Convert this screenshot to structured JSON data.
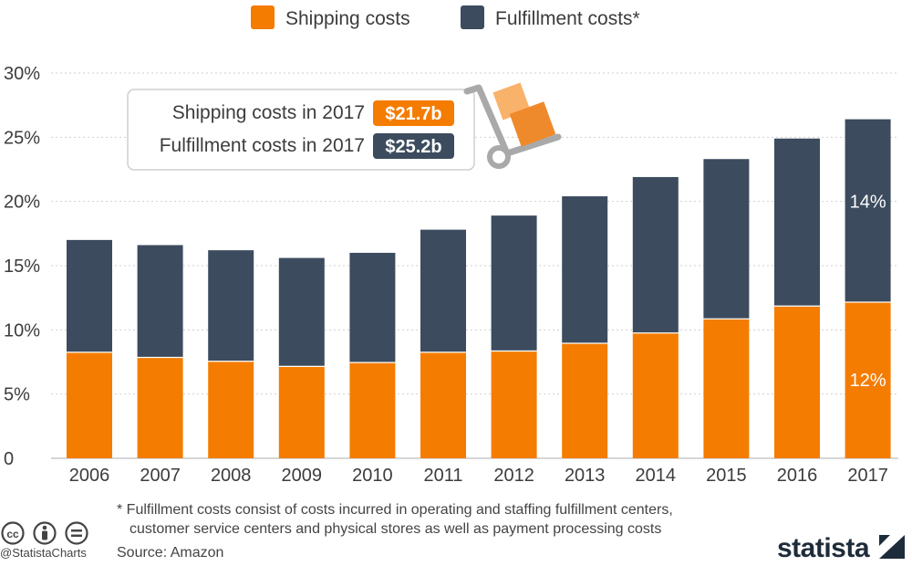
{
  "chart_data": {
    "type": "bar",
    "stacked": true,
    "categories": [
      "2006",
      "2007",
      "2008",
      "2009",
      "2010",
      "2011",
      "2012",
      "2013",
      "2014",
      "2015",
      "2016",
      "2017"
    ],
    "series": [
      {
        "name": "Shipping costs",
        "color": "#f47c00",
        "values": [
          8.3,
          7.9,
          7.6,
          7.2,
          7.5,
          8.3,
          8.4,
          9.0,
          9.8,
          10.9,
          11.9,
          12.2
        ]
      },
      {
        "name": "Fulfillment costs*",
        "color": "#3c4c5e",
        "values": [
          8.7,
          8.7,
          8.6,
          8.4,
          8.5,
          9.5,
          10.5,
          11.4,
          12.1,
          12.4,
          13.0,
          14.2
        ]
      }
    ],
    "ylim": [
      0,
      30
    ],
    "yticks": [
      0,
      5,
      10,
      15,
      20,
      25,
      30
    ],
    "ytick_labels": [
      "0",
      "5%",
      "10%",
      "15%",
      "20%",
      "25%",
      "30%"
    ],
    "legend_position": "top-center",
    "data_labels": [
      {
        "category": "2017",
        "series": "Shipping costs",
        "label": "12%"
      },
      {
        "category": "2017",
        "series": "Fulfillment costs*",
        "label": "14%"
      }
    ],
    "annotation": {
      "rows": [
        {
          "label": "Shipping costs in 2017",
          "value": "$21.7b",
          "color": "#f47c00"
        },
        {
          "label": "Fulfillment costs in 2017",
          "value": "$25.2b",
          "color": "#3c4c5e"
        }
      ]
    }
  },
  "footnote": {
    "line1": "* Fulfillment costs consist of costs incurred in operating and staffing fulfillment centers,",
    "line2": "customer service centers and physical stores as well as payment processing costs"
  },
  "source": "Source: Amazon",
  "handle": "@StatistaCharts",
  "brand": "statista",
  "icons": [
    "creative-commons-icon",
    "attribution-icon",
    "no-derivatives-icon",
    "hand-truck-icon",
    "statista-logo-icon"
  ]
}
